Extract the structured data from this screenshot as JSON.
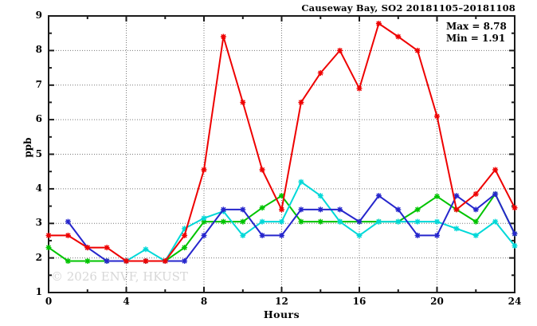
{
  "header": {
    "title": "Causeway Bay, SO2 20181105–20181108"
  },
  "annotation": {
    "max_label": "Max = 8.78",
    "min_label": "Min = 1.91"
  },
  "watermark": "© 2026 ENVF, HKUST",
  "chart_data": {
    "type": "line",
    "title": "Causeway Bay, SO2 20181105–20181108",
    "xlabel": "Hours",
    "ylabel": "ppb",
    "xlim": [
      0,
      24
    ],
    "ylim": [
      1,
      9
    ],
    "x_major_ticks": [
      0,
      4,
      8,
      12,
      16,
      20,
      24
    ],
    "x_minor_step": 2,
    "y_major_ticks": [
      1,
      2,
      3,
      4,
      5,
      6,
      7,
      8,
      9
    ],
    "y_minor_step": 0.5,
    "grid": true,
    "legend": "none",
    "stats": {
      "max": 8.78,
      "min": 1.91
    },
    "marker": "asterisk",
    "series": [
      {
        "name": "green",
        "color": "#00c400",
        "x": [
          0,
          1,
          2,
          3,
          4,
          5,
          6,
          7,
          8,
          9,
          10,
          11,
          12,
          13,
          14,
          15,
          16,
          17,
          18,
          19,
          20,
          21,
          22,
          23,
          24
        ],
        "y": [
          2.3,
          1.91,
          1.91,
          1.91,
          1.91,
          1.91,
          1.91,
          2.3,
          3.05,
          3.05,
          3.05,
          3.45,
          3.8,
          3.05,
          3.05,
          3.05,
          3.05,
          3.05,
          3.05,
          3.4,
          3.78,
          3.4,
          3.05,
          3.85,
          2.7
        ]
      },
      {
        "name": "cyan",
        "color": "#00d8d8",
        "x": [
          4,
          5,
          6,
          7,
          8,
          9,
          10,
          11,
          12,
          13,
          14,
          15,
          16,
          17,
          18,
          19,
          20,
          21,
          22,
          23,
          24
        ],
        "y": [
          1.91,
          2.25,
          1.91,
          2.85,
          3.15,
          3.35,
          2.65,
          3.05,
          3.05,
          4.2,
          3.8,
          3.05,
          2.65,
          3.05,
          3.05,
          3.05,
          3.05,
          2.85,
          2.65,
          3.05,
          2.35
        ]
      },
      {
        "name": "blue",
        "color": "#2626cc",
        "x": [
          1,
          2,
          3,
          4,
          5,
          6,
          7,
          8,
          9,
          10,
          11,
          12,
          13,
          14,
          15,
          16,
          17,
          18,
          19,
          20,
          21,
          22,
          23,
          24
        ],
        "y": [
          3.05,
          2.3,
          1.91,
          1.91,
          1.91,
          1.91,
          1.91,
          2.65,
          3.4,
          3.4,
          2.65,
          2.65,
          3.4,
          3.4,
          3.4,
          3.05,
          3.8,
          3.4,
          2.65,
          2.65,
          3.8,
          3.4,
          3.85,
          2.7
        ]
      },
      {
        "name": "red",
        "color": "#ee0000",
        "x": [
          0,
          1,
          2,
          3,
          4,
          5,
          6,
          7,
          8,
          9,
          10,
          11,
          12,
          13,
          14,
          15,
          16,
          17,
          18,
          19,
          20,
          21,
          22,
          23,
          24
        ],
        "y": [
          2.65,
          2.65,
          2.3,
          2.3,
          1.91,
          1.91,
          1.91,
          2.65,
          4.55,
          8.4,
          6.5,
          4.55,
          3.4,
          6.5,
          7.35,
          8.0,
          6.9,
          8.78,
          8.4,
          8.0,
          6.1,
          3.4,
          3.85,
          4.55,
          3.45
        ]
      }
    ]
  },
  "style": {
    "border_color": "#1a1a1a",
    "grid_color": "#787878",
    "background": "#ffffff"
  }
}
